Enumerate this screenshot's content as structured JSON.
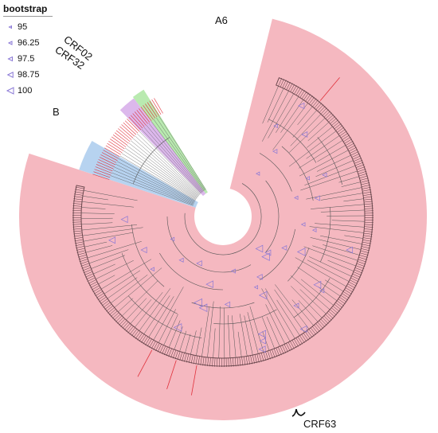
{
  "legend": {
    "title": "bootstrap",
    "items": [
      {
        "label": "95",
        "size": 3
      },
      {
        "label": "96.25",
        "size": 4
      },
      {
        "label": "97.5",
        "size": 5
      },
      {
        "label": "98.75",
        "size": 6.5
      },
      {
        "label": "100",
        "size": 8
      }
    ]
  },
  "clades": {
    "a6": "A6",
    "crf02": "CRF02",
    "crf32": "CRF32",
    "b": "B",
    "crf63": "CRF63"
  },
  "colors": {
    "a6": "#f5b8c0",
    "crf02": "#b9eab0",
    "crf32": "#dcb8ec",
    "b": "#b7d3f0",
    "branch": "#555555",
    "highlight_text": "#e0303a",
    "bootstrap_symbol": "#8a78d6"
  }
}
